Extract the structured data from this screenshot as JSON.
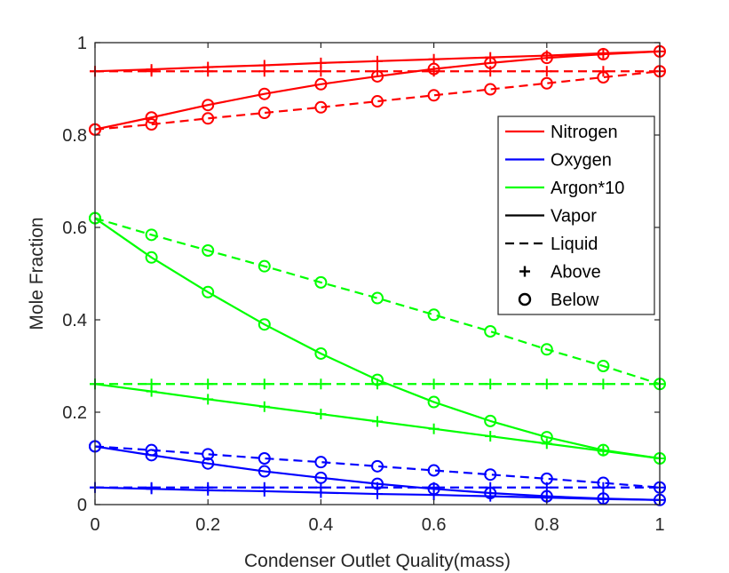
{
  "chart_data": {
    "type": "line",
    "title": "",
    "xlabel": "Condenser Outlet Quality(mass)",
    "ylabel": "Mole Fraction",
    "xlim": [
      0,
      1
    ],
    "ylim": [
      0,
      1
    ],
    "xticks": [
      0,
      0.2,
      0.4,
      0.6,
      0.8,
      1
    ],
    "xtick_labels": [
      "0",
      "0.2",
      "0.4",
      "0.6",
      "0.8",
      "1"
    ],
    "yticks": [
      0,
      0.2,
      0.4,
      0.6,
      0.8,
      1
    ],
    "ytick_labels": [
      "0",
      "0.2",
      "0.4",
      "0.6",
      "0.8",
      "1"
    ],
    "grid": false,
    "legend_placement": "right",
    "x": [
      0,
      0.1,
      0.2,
      0.3,
      0.4,
      0.5,
      0.6,
      0.7,
      0.8,
      0.9,
      1.0
    ],
    "colors": {
      "nitrogen": "#ff0000",
      "oxygen": "#0000ff",
      "argon": "#00ff00",
      "axis": "#262626"
    },
    "legend": [
      {
        "label": "Nitrogen",
        "kind": "line",
        "color": "#ff0000",
        "dash": "solid"
      },
      {
        "label": "Oxygen",
        "kind": "line",
        "color": "#0000ff",
        "dash": "solid"
      },
      {
        "label": "Argon*10",
        "kind": "line",
        "color": "#00ff00",
        "dash": "solid"
      },
      {
        "label": "Vapor",
        "kind": "line",
        "color": "#000000",
        "dash": "solid"
      },
      {
        "label": "Liquid",
        "kind": "line",
        "color": "#000000",
        "dash": "dashed"
      },
      {
        "label": "Above",
        "kind": "marker",
        "color": "#000000",
        "marker": "plus"
      },
      {
        "label": "Below",
        "kind": "marker",
        "color": "#000000",
        "marker": "circle"
      }
    ],
    "series": [
      {
        "component": "nitrogen",
        "phase": "vapor",
        "region": "above",
        "color": "#ff0000",
        "dash": "solid",
        "marker": "plus",
        "values": [
          0.938,
          0.942,
          0.947,
          0.951,
          0.956,
          0.96,
          0.964,
          0.968,
          0.972,
          0.977,
          0.981
        ]
      },
      {
        "component": "nitrogen",
        "phase": "liquid",
        "region": "above",
        "color": "#ff0000",
        "dash": "dashed",
        "marker": "plus",
        "values": [
          0.938,
          0.938,
          0.938,
          0.938,
          0.938,
          0.938,
          0.938,
          0.938,
          0.938,
          0.938,
          0.938
        ]
      },
      {
        "component": "nitrogen",
        "phase": "vapor",
        "region": "below",
        "color": "#ff0000",
        "dash": "solid",
        "marker": "circle",
        "values": [
          0.812,
          0.838,
          0.865,
          0.889,
          0.91,
          0.927,
          0.943,
          0.956,
          0.967,
          0.975,
          0.981
        ]
      },
      {
        "component": "nitrogen",
        "phase": "liquid",
        "region": "below",
        "color": "#ff0000",
        "dash": "dashed",
        "marker": "circle",
        "values": [
          0.812,
          0.823,
          0.836,
          0.848,
          0.86,
          0.873,
          0.886,
          0.899,
          0.912,
          0.925,
          0.938
        ]
      },
      {
        "component": "oxygen",
        "phase": "vapor",
        "region": "above",
        "color": "#0000ff",
        "dash": "solid",
        "marker": "plus",
        "values": [
          0.037,
          0.034,
          0.031,
          0.029,
          0.026,
          0.023,
          0.021,
          0.018,
          0.015,
          0.012,
          0.01
        ]
      },
      {
        "component": "oxygen",
        "phase": "liquid",
        "region": "above",
        "color": "#0000ff",
        "dash": "dashed",
        "marker": "plus",
        "values": [
          0.037,
          0.037,
          0.037,
          0.037,
          0.037,
          0.037,
          0.037,
          0.037,
          0.037,
          0.037,
          0.037
        ]
      },
      {
        "component": "oxygen",
        "phase": "vapor",
        "region": "below",
        "color": "#0000ff",
        "dash": "solid",
        "marker": "circle",
        "values": [
          0.126,
          0.107,
          0.089,
          0.072,
          0.058,
          0.045,
          0.034,
          0.025,
          0.018,
          0.013,
          0.01
        ]
      },
      {
        "component": "oxygen",
        "phase": "liquid",
        "region": "below",
        "color": "#0000ff",
        "dash": "dashed",
        "marker": "circle",
        "values": [
          0.126,
          0.118,
          0.109,
          0.1,
          0.092,
          0.083,
          0.074,
          0.065,
          0.056,
          0.047,
          0.037
        ]
      },
      {
        "component": "argon",
        "phase": "vapor",
        "region": "above",
        "color": "#00ff00",
        "dash": "solid",
        "marker": "plus",
        "values": [
          0.261,
          0.245,
          0.228,
          0.212,
          0.196,
          0.18,
          0.164,
          0.148,
          0.132,
          0.116,
          0.1
        ]
      },
      {
        "component": "argon",
        "phase": "liquid",
        "region": "above",
        "color": "#00ff00",
        "dash": "dashed",
        "marker": "plus",
        "values": [
          0.261,
          0.261,
          0.261,
          0.261,
          0.261,
          0.261,
          0.261,
          0.261,
          0.261,
          0.261,
          0.261
        ]
      },
      {
        "component": "argon",
        "phase": "vapor",
        "region": "below",
        "color": "#00ff00",
        "dash": "solid",
        "marker": "circle",
        "values": [
          0.62,
          0.535,
          0.46,
          0.39,
          0.327,
          0.27,
          0.222,
          0.181,
          0.146,
          0.118,
          0.1
        ]
      },
      {
        "component": "argon",
        "phase": "liquid",
        "region": "below",
        "color": "#00ff00",
        "dash": "dashed",
        "marker": "circle",
        "values": [
          0.62,
          0.584,
          0.55,
          0.516,
          0.481,
          0.447,
          0.411,
          0.375,
          0.336,
          0.3,
          0.261
        ]
      }
    ]
  }
}
